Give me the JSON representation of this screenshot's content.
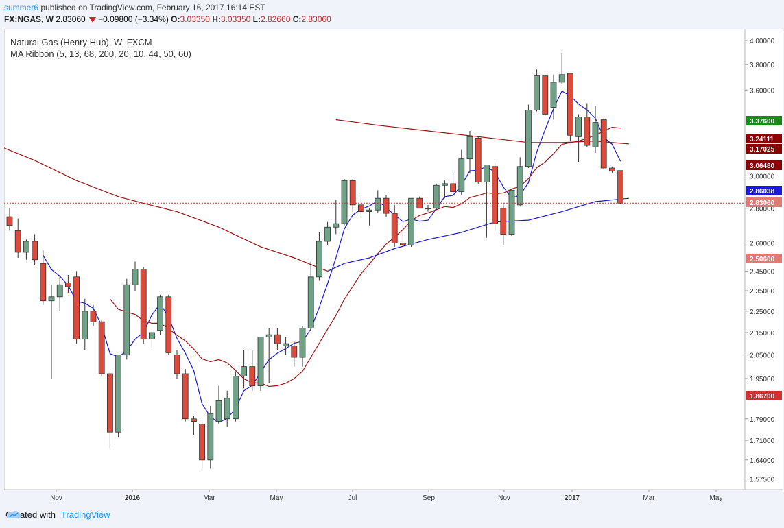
{
  "header": {
    "user": "summer6",
    "published": "published on TradingView.com, February 16, 2017 16:14 EST",
    "symbol": "FX:NGAS, W",
    "price": "2.83060",
    "change": "−0.09800 (−3.34%)",
    "o_label": "O:",
    "o_value": "3.03350",
    "h_label": "H:",
    "h_value": "3.03350",
    "l_label": "L:",
    "l_value": "2.82660",
    "c_label": "C:",
    "c_value": "2.83060"
  },
  "legend": {
    "title": "Natural Gas (Henry Hub), W, FXCM",
    "indicator": "MA Ribbon (5, 13, 68, 200, 20, 10, 44, 50, 60)"
  },
  "footer": {
    "created_with": "Created with",
    "brand": "TradingView",
    "icon": "tradingview-cloud-icon"
  },
  "colors": {
    "up": "#6fa287",
    "down": "#dd4b3c",
    "ma5": "#1a1ad8",
    "ma13": "#a31515",
    "ma68": "#1a1ad8",
    "ma200": "#9b1111",
    "last_price_line": "#c0392b"
  },
  "chart_data": {
    "type": "candlestick",
    "title": "Natural Gas (Henry Hub), W, FXCM",
    "y_scale": "log",
    "ylim": [
      1.54,
      4.1
    ],
    "grid": false,
    "y_ticks": [
      "4.00000",
      "3.80000",
      "3.60000",
      "3.00000",
      "2.80000",
      "2.60000",
      "2.45000",
      "2.35000",
      "2.25000",
      "2.15000",
      "2.05000",
      "1.95000",
      "1.79000",
      "1.71000",
      "1.64000",
      "1.57500"
    ],
    "x_ticks": [
      "Nov",
      "2016",
      "Mar",
      "May",
      "Jul",
      "Sep",
      "Nov",
      "2017",
      "Mar",
      "May"
    ],
    "price_labels": [
      {
        "value": "3.37600",
        "color": "#1b8a1b"
      },
      {
        "value": "3.24111",
        "color": "#8b0000"
      },
      {
        "value": "3.17025",
        "color": "#8b0000"
      },
      {
        "value": "3.06480",
        "color": "#8b0000"
      },
      {
        "value": "2.86038",
        "color": "#1a1ad8"
      },
      {
        "value": "2.83060",
        "color": "#e07a73"
      },
      {
        "value": "2.50600",
        "color": "#e07a73"
      },
      {
        "value": "1.86700",
        "color": "#d32f2f"
      }
    ],
    "last_price": 2.8306,
    "candles": [
      {
        "o": 2.75,
        "h": 2.8,
        "l": 2.67,
        "c": 2.7
      },
      {
        "o": 2.67,
        "h": 2.74,
        "l": 2.52,
        "c": 2.55
      },
      {
        "o": 2.55,
        "h": 2.62,
        "l": 2.51,
        "c": 2.61
      },
      {
        "o": 2.61,
        "h": 2.65,
        "l": 2.48,
        "c": 2.51
      },
      {
        "o": 2.49,
        "h": 2.56,
        "l": 2.28,
        "c": 2.3
      },
      {
        "o": 2.3,
        "h": 2.38,
        "l": 1.95,
        "c": 2.32
      },
      {
        "o": 2.32,
        "h": 2.43,
        "l": 2.25,
        "c": 2.38
      },
      {
        "o": 2.39,
        "h": 2.43,
        "l": 2.34,
        "c": 2.37
      },
      {
        "o": 2.42,
        "h": 2.45,
        "l": 2.1,
        "c": 2.12
      },
      {
        "o": 2.12,
        "h": 2.31,
        "l": 2.07,
        "c": 2.25
      },
      {
        "o": 2.25,
        "h": 2.28,
        "l": 2.18,
        "c": 2.2
      },
      {
        "o": 2.2,
        "h": 2.21,
        "l": 1.96,
        "c": 1.97
      },
      {
        "o": 1.97,
        "h": 1.98,
        "l": 1.68,
        "c": 1.74
      },
      {
        "o": 1.74,
        "h": 2.05,
        "l": 1.72,
        "c": 2.05
      },
      {
        "o": 2.05,
        "h": 2.41,
        "l": 2.03,
        "c": 2.38
      },
      {
        "o": 2.38,
        "h": 2.5,
        "l": 2.35,
        "c": 2.46
      },
      {
        "o": 2.46,
        "h": 2.47,
        "l": 2.1,
        "c": 2.12
      },
      {
        "o": 2.12,
        "h": 2.16,
        "l": 2.08,
        "c": 2.15
      },
      {
        "o": 2.16,
        "h": 2.33,
        "l": 2.14,
        "c": 2.32
      },
      {
        "o": 2.32,
        "h": 2.33,
        "l": 2.05,
        "c": 2.06
      },
      {
        "o": 2.05,
        "h": 2.07,
        "l": 1.95,
        "c": 1.97
      },
      {
        "o": 1.97,
        "h": 1.99,
        "l": 1.78,
        "c": 1.79
      },
      {
        "o": 1.79,
        "h": 1.8,
        "l": 1.73,
        "c": 1.78
      },
      {
        "o": 1.77,
        "h": 1.78,
        "l": 1.61,
        "c": 1.64
      },
      {
        "o": 1.64,
        "h": 1.84,
        "l": 1.61,
        "c": 1.81
      },
      {
        "o": 1.78,
        "h": 1.92,
        "l": 1.77,
        "c": 1.86
      },
      {
        "o": 1.79,
        "h": 1.9,
        "l": 1.76,
        "c": 1.87
      },
      {
        "o": 1.79,
        "h": 1.98,
        "l": 1.78,
        "c": 1.96
      },
      {
        "o": 1.96,
        "h": 2.07,
        "l": 1.91,
        "c": 2.0
      },
      {
        "o": 2.0,
        "h": 2.07,
        "l": 1.9,
        "c": 1.92
      },
      {
        "o": 1.92,
        "h": 2.11,
        "l": 1.9,
        "c": 2.13
      },
      {
        "o": 2.13,
        "h": 2.17,
        "l": 1.93,
        "c": 2.14
      },
      {
        "o": 2.14,
        "h": 2.17,
        "l": 2.07,
        "c": 2.1
      },
      {
        "o": 2.09,
        "h": 2.13,
        "l": 2.05,
        "c": 2.1
      },
      {
        "o": 2.09,
        "h": 2.11,
        "l": 2.0,
        "c": 2.04
      },
      {
        "o": 2.04,
        "h": 2.18,
        "l": 2.0,
        "c": 2.17
      },
      {
        "o": 2.17,
        "h": 2.5,
        "l": 2.16,
        "c": 2.42
      },
      {
        "o": 2.42,
        "h": 2.66,
        "l": 2.4,
        "c": 2.61
      },
      {
        "o": 2.61,
        "h": 2.72,
        "l": 2.59,
        "c": 2.69
      },
      {
        "o": 2.69,
        "h": 2.85,
        "l": 2.65,
        "c": 2.71
      },
      {
        "o": 2.71,
        "h": 2.98,
        "l": 2.7,
        "c": 2.97
      },
      {
        "o": 2.97,
        "h": 2.98,
        "l": 2.78,
        "c": 2.82
      },
      {
        "o": 2.82,
        "h": 2.87,
        "l": 2.75,
        "c": 2.78
      },
      {
        "o": 2.78,
        "h": 2.8,
        "l": 2.7,
        "c": 2.79
      },
      {
        "o": 2.79,
        "h": 2.91,
        "l": 2.77,
        "c": 2.86
      },
      {
        "o": 2.86,
        "h": 2.88,
        "l": 2.75,
        "c": 2.77
      },
      {
        "o": 2.77,
        "h": 2.82,
        "l": 2.58,
        "c": 2.6
      },
      {
        "o": 2.6,
        "h": 2.68,
        "l": 2.58,
        "c": 2.59
      },
      {
        "o": 2.59,
        "h": 2.86,
        "l": 2.58,
        "c": 2.86
      },
      {
        "o": 2.86,
        "h": 2.87,
        "l": 2.8,
        "c": 2.8
      },
      {
        "o": 2.8,
        "h": 2.82,
        "l": 2.78,
        "c": 2.8
      },
      {
        "o": 2.8,
        "h": 2.95,
        "l": 2.79,
        "c": 2.94
      },
      {
        "o": 2.94,
        "h": 2.97,
        "l": 2.86,
        "c": 2.95
      },
      {
        "o": 2.95,
        "h": 3.02,
        "l": 2.88,
        "c": 2.9
      },
      {
        "o": 2.9,
        "h": 3.17,
        "l": 2.88,
        "c": 3.11
      },
      {
        "o": 3.11,
        "h": 3.3,
        "l": 3.02,
        "c": 3.26
      },
      {
        "o": 3.25,
        "h": 3.26,
        "l": 2.95,
        "c": 2.96
      },
      {
        "o": 2.96,
        "h": 3.07,
        "l": 2.63,
        "c": 3.07
      },
      {
        "o": 3.06,
        "h": 3.08,
        "l": 2.67,
        "c": 2.71
      },
      {
        "o": 2.8,
        "h": 2.83,
        "l": 2.59,
        "c": 2.65
      },
      {
        "o": 2.65,
        "h": 2.92,
        "l": 2.64,
        "c": 2.91
      },
      {
        "o": 2.82,
        "h": 3.12,
        "l": 2.81,
        "c": 3.06
      },
      {
        "o": 3.06,
        "h": 3.49,
        "l": 3.05,
        "c": 3.45
      },
      {
        "o": 3.45,
        "h": 3.76,
        "l": 3.44,
        "c": 3.71
      },
      {
        "o": 3.71,
        "h": 3.72,
        "l": 3.41,
        "c": 3.42
      },
      {
        "o": 3.47,
        "h": 3.72,
        "l": 3.38,
        "c": 3.66
      },
      {
        "o": 3.66,
        "h": 3.89,
        "l": 3.65,
        "c": 3.72
      },
      {
        "o": 3.73,
        "h": 3.73,
        "l": 3.23,
        "c": 3.27
      },
      {
        "o": 3.26,
        "h": 3.42,
        "l": 3.09,
        "c": 3.4
      },
      {
        "o": 3.4,
        "h": 3.5,
        "l": 3.19,
        "c": 3.2
      },
      {
        "o": 3.19,
        "h": 3.48,
        "l": 3.15,
        "c": 3.36
      },
      {
        "o": 3.38,
        "h": 3.39,
        "l": 3.04,
        "c": 3.05
      },
      {
        "o": 3.05,
        "h": 3.06,
        "l": 3.02,
        "c": 3.03
      },
      {
        "o": 3.0335,
        "h": 3.0335,
        "l": 2.8266,
        "c": 2.8306
      }
    ],
    "moving_averages": [
      {
        "period": 5,
        "color": "#1a1ad8"
      },
      {
        "period": 13,
        "color": "#a31515"
      },
      {
        "period": 68,
        "color": "#1a1ad8"
      },
      {
        "period": 200,
        "color": "#9b1111"
      }
    ],
    "ma68_series": [
      {
        "i": 38,
        "v": 2.45
      },
      {
        "i": 40,
        "v": 2.49
      },
      {
        "i": 43,
        "v": 2.52
      },
      {
        "i": 46,
        "v": 2.57
      },
      {
        "i": 50,
        "v": 2.62
      },
      {
        "i": 54,
        "v": 2.66
      },
      {
        "i": 58,
        "v": 2.72
      },
      {
        "i": 62,
        "v": 2.73
      },
      {
        "i": 66,
        "v": 2.78
      },
      {
        "i": 70,
        "v": 2.84
      },
      {
        "i": 74,
        "v": 2.86
      }
    ],
    "ma200_series": [
      {
        "i": -1,
        "v": 3.19
      },
      {
        "i": 3,
        "v": 3.1
      },
      {
        "i": 8,
        "v": 2.97
      },
      {
        "i": 13,
        "v": 2.87
      },
      {
        "i": 16,
        "v": 2.83
      },
      {
        "i": 20,
        "v": 2.78
      },
      {
        "i": 25,
        "v": 2.69
      },
      {
        "i": 30,
        "v": 2.58
      },
      {
        "i": 34,
        "v": 2.52
      },
      {
        "i": 38,
        "v": 2.45
      },
      {
        "i": 39,
        "v": 3.38
      },
      {
        "i": 44,
        "v": 3.34
      },
      {
        "i": 50,
        "v": 3.3
      },
      {
        "i": 56,
        "v": 3.26
      },
      {
        "i": 62,
        "v": 3.22
      },
      {
        "i": 66,
        "v": 3.22
      },
      {
        "i": 70,
        "v": 3.23
      },
      {
        "i": 74,
        "v": 3.21
      }
    ]
  }
}
